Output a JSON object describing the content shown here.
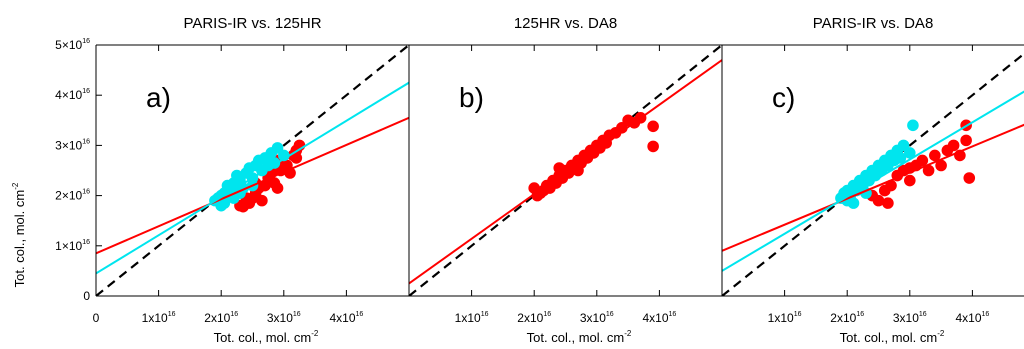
{
  "figure": {
    "ylabel": "Tot. col., mol. cm",
    "ylabel_sup": "-2"
  },
  "chart_data": [
    {
      "type": "scatter",
      "title": "PARIS-IR vs. 125HR",
      "panel_label": "a)",
      "xlabel": "Tot. col., mol. cm",
      "xlabel_sup": "-2",
      "ylabel": "Tot. col., mol. cm",
      "xlim": [
        0,
        5e+16
      ],
      "ylim": [
        0,
        5e+16
      ],
      "x_ticks": [
        {
          "value": 0,
          "label": "0"
        },
        {
          "value": 1e+16,
          "label": "1x10",
          "sup": "16"
        },
        {
          "value": 2e+16,
          "label": "2x10",
          "sup": "16"
        },
        {
          "value": 3e+16,
          "label": "3x10",
          "sup": "16"
        },
        {
          "value": 4e+16,
          "label": "4x10",
          "sup": "16"
        }
      ],
      "y_ticks": [
        {
          "value": 0,
          "label": "0"
        },
        {
          "value": 1e+16,
          "label": "1×10",
          "sup": "16"
        },
        {
          "value": 2e+16,
          "label": "2×10",
          "sup": "16"
        },
        {
          "value": 3e+16,
          "label": "3×10",
          "sup": "16"
        },
        {
          "value": 4e+16,
          "label": "4×10",
          "sup": "16"
        },
        {
          "value": 5e+16,
          "label": "5×10",
          "sup": "16"
        }
      ],
      "one_to_one_line": true,
      "series": [
        {
          "color": "#ff0000",
          "points": [
            [
              2.3e+16,
              1.8e+16
            ],
            [
              2.35e+16,
              1.78e+16
            ],
            [
              2.45e+16,
              1.85e+16
            ],
            [
              2.5e+16,
              1.95e+16
            ],
            [
              2.55e+16,
              2.05e+16
            ],
            [
              2.6e+16,
              2.15e+16
            ],
            [
              2.7e+16,
              2.2e+16
            ],
            [
              2.75e+16,
              2.35e+16
            ],
            [
              2.8e+16,
              2.45e+16
            ],
            [
              2.85e+16,
              2.25e+16
            ],
            [
              2.9e+16,
              2.15e+16
            ],
            [
              2.95e+16,
              2.5e+16
            ],
            [
              3.05e+16,
              2.6e+16
            ],
            [
              3.1e+16,
              2.45e+16
            ],
            [
              3.15e+16,
              2.8e+16
            ],
            [
              3.2e+16,
              2.9e+16
            ],
            [
              3.25e+16,
              3e+16
            ],
            [
              3.2e+16,
              2.75e+16
            ],
            [
              2.65e+16,
              1.9e+16
            ],
            [
              2.4e+16,
              1.95e+16
            ],
            [
              2.55e+16,
              2.25e+16
            ],
            [
              2.9e+16,
              2.7e+16
            ]
          ],
          "fit": {
            "intercept": 8500000000000000.0,
            "slope": 0.54
          }
        },
        {
          "color": "#00e5ee",
          "points": [
            [
              1.9e+16,
              1.9e+16
            ],
            [
              1.95e+16,
              1.95e+16
            ],
            [
              2e+16,
              2e+16
            ],
            [
              2e+16,
              1.8e+16
            ],
            [
              2.05e+16,
              2.05e+16
            ],
            [
              2.1e+16,
              2e+16
            ],
            [
              2.1e+16,
              2.2e+16
            ],
            [
              2.15e+16,
              2.1e+16
            ],
            [
              2.2e+16,
              2.25e+16
            ],
            [
              2.2e+16,
              1.95e+16
            ],
            [
              2.25e+16,
              2.4e+16
            ],
            [
              2.3e+16,
              2.3e+16
            ],
            [
              2.35e+16,
              2.15e+16
            ],
            [
              2.4e+16,
              2.45e+16
            ],
            [
              2.45e+16,
              2.55e+16
            ],
            [
              2.5e+16,
              2.35e+16
            ],
            [
              2.55e+16,
              2.6e+16
            ],
            [
              2.6e+16,
              2.7e+16
            ],
            [
              2.65e+16,
              2.5e+16
            ],
            [
              2.7e+16,
              2.75e+16
            ],
            [
              2.75e+16,
              2.6e+16
            ],
            [
              2.8e+16,
              2.85e+16
            ],
            [
              2.85e+16,
              2.65e+16
            ],
            [
              2.9e+16,
              2.95e+16
            ],
            [
              3e+16,
              2.8e+16
            ],
            [
              2.05e+16,
              1.85e+16
            ],
            [
              2.3e+16,
              2.05e+16
            ],
            [
              2.5e+16,
              2.2e+16
            ]
          ],
          "fit": {
            "intercept": 4500000000000000.0,
            "slope": 0.76
          }
        }
      ]
    },
    {
      "type": "scatter",
      "title": "125HR vs. DA8",
      "panel_label": "b)",
      "xlabel": "Tot. col., mol. cm",
      "xlabel_sup": "-2",
      "xlim": [
        0,
        5e+16
      ],
      "ylim": [
        0,
        5e+16
      ],
      "x_ticks": [
        {
          "value": 1e+16,
          "label": "1x10",
          "sup": "16"
        },
        {
          "value": 2e+16,
          "label": "2x10",
          "sup": "16"
        },
        {
          "value": 3e+16,
          "label": "3x10",
          "sup": "16"
        },
        {
          "value": 4e+16,
          "label": "4x10",
          "sup": "16"
        }
      ],
      "y_ticks": [],
      "one_to_one_line": true,
      "series": [
        {
          "color": "#ff0000",
          "points": [
            [
              2e+16,
              2.15e+16
            ],
            [
              2.05e+16,
              2e+16
            ],
            [
              2.1e+16,
              2.05e+16
            ],
            [
              2.15e+16,
              2.1e+16
            ],
            [
              2.2e+16,
              2.2e+16
            ],
            [
              2.25e+16,
              2.15e+16
            ],
            [
              2.3e+16,
              2.3e+16
            ],
            [
              2.35e+16,
              2.25e+16
            ],
            [
              2.4e+16,
              2.4e+16
            ],
            [
              2.45e+16,
              2.35e+16
            ],
            [
              2.5e+16,
              2.5e+16
            ],
            [
              2.55e+16,
              2.45e+16
            ],
            [
              2.6e+16,
              2.6e+16
            ],
            [
              2.65e+16,
              2.55e+16
            ],
            [
              2.7e+16,
              2.7e+16
            ],
            [
              2.75e+16,
              2.65e+16
            ],
            [
              2.8e+16,
              2.8e+16
            ],
            [
              2.85e+16,
              2.75e+16
            ],
            [
              2.9e+16,
              2.9e+16
            ],
            [
              2.95e+16,
              2.85e+16
            ],
            [
              3e+16,
              3e+16
            ],
            [
              3.05e+16,
              2.95e+16
            ],
            [
              3.1e+16,
              3.1e+16
            ],
            [
              3.15e+16,
              3.05e+16
            ],
            [
              3.2e+16,
              3.2e+16
            ],
            [
              3.3e+16,
              3.25e+16
            ],
            [
              3.4e+16,
              3.35e+16
            ],
            [
              3.5e+16,
              3.5e+16
            ],
            [
              3.6e+16,
              3.45e+16
            ],
            [
              3.7e+16,
              3.55e+16
            ],
            [
              3.9e+16,
              2.98e+16
            ],
            [
              3.9e+16,
              3.38e+16
            ],
            [
              2.4e+16,
              2.55e+16
            ],
            [
              2.7e+16,
              2.5e+16
            ]
          ],
          "fit": {
            "intercept": 2500000000000000.0,
            "slope": 0.89
          }
        }
      ]
    },
    {
      "type": "scatter",
      "title": "PARIS-IR vs. DA8",
      "panel_label": "c)",
      "xlabel": "Tot. col., mol. cm",
      "xlabel_sup": "-2",
      "xlim": [
        0,
        5e+16
      ],
      "ylim": [
        0,
        5e+16
      ],
      "x_ticks": [
        {
          "value": 1e+16,
          "label": "1x10",
          "sup": "16"
        },
        {
          "value": 2e+16,
          "label": "2x10",
          "sup": "16"
        },
        {
          "value": 3e+16,
          "label": "3x10",
          "sup": "16"
        },
        {
          "value": 4e+16,
          "label": "4x10",
          "sup": "16"
        }
      ],
      "y_ticks": [],
      "one_to_one_line": true,
      "series": [
        {
          "color": "#ff0000",
          "points": [
            [
              2.5e+16,
              1.9e+16
            ],
            [
              2.6e+16,
              2.1e+16
            ],
            [
              2.7e+16,
              2.2e+16
            ],
            [
              2.8e+16,
              2.4e+16
            ],
            [
              2.9e+16,
              2.5e+16
            ],
            [
              3e+16,
              2.3e+16
            ],
            [
              3.1e+16,
              2.6e+16
            ],
            [
              3.2e+16,
              2.7e+16
            ],
            [
              3.3e+16,
              2.5e+16
            ],
            [
              3.4e+16,
              2.8e+16
            ],
            [
              3.5e+16,
              2.6e+16
            ],
            [
              3.6e+16,
              2.9e+16
            ],
            [
              3.7e+16,
              3e+16
            ],
            [
              3.8e+16,
              2.8e+16
            ],
            [
              3.9e+16,
              3.1e+16
            ],
            [
              3.95e+16,
              2.35e+16
            ],
            [
              3.9e+16,
              3.4e+16
            ],
            [
              2.4e+16,
              2e+16
            ],
            [
              2.65e+16,
              1.85e+16
            ],
            [
              3e+16,
              2.55e+16
            ]
          ],
          "fit": {
            "intercept": 9000000000000000.0,
            "slope": 0.52
          }
        },
        {
          "color": "#00e5ee",
          "points": [
            [
              1.9e+16,
              1.95e+16
            ],
            [
              1.95e+16,
              2.05e+16
            ],
            [
              2e+16,
              1.9e+16
            ],
            [
              2e+16,
              2.1e+16
            ],
            [
              2.05e+16,
              2e+16
            ],
            [
              2.1e+16,
              2.2e+16
            ],
            [
              2.15e+16,
              2.1e+16
            ],
            [
              2.2e+16,
              2.3e+16
            ],
            [
              2.25e+16,
              2.2e+16
            ],
            [
              2.3e+16,
              2.4e+16
            ],
            [
              2.35e+16,
              2.3e+16
            ],
            [
              2.4e+16,
              2.5e+16
            ],
            [
              2.45e+16,
              2.4e+16
            ],
            [
              2.5e+16,
              2.6e+16
            ],
            [
              2.55e+16,
              2.5e+16
            ],
            [
              2.6e+16,
              2.7e+16
            ],
            [
              2.65e+16,
              2.6e+16
            ],
            [
              2.7e+16,
              2.8e+16
            ],
            [
              2.75e+16,
              2.7e+16
            ],
            [
              2.8e+16,
              2.9e+16
            ],
            [
              2.85e+16,
              2.75e+16
            ],
            [
              2.9e+16,
              3e+16
            ],
            [
              3e+16,
              2.85e+16
            ],
            [
              3.05e+16,
              3.4e+16
            ],
            [
              2.1e+16,
              1.85e+16
            ],
            [
              2.3e+16,
              2.05e+16
            ]
          ],
          "fit": {
            "intercept": 5000000000000000.0,
            "slope": 0.74
          }
        }
      ]
    }
  ]
}
